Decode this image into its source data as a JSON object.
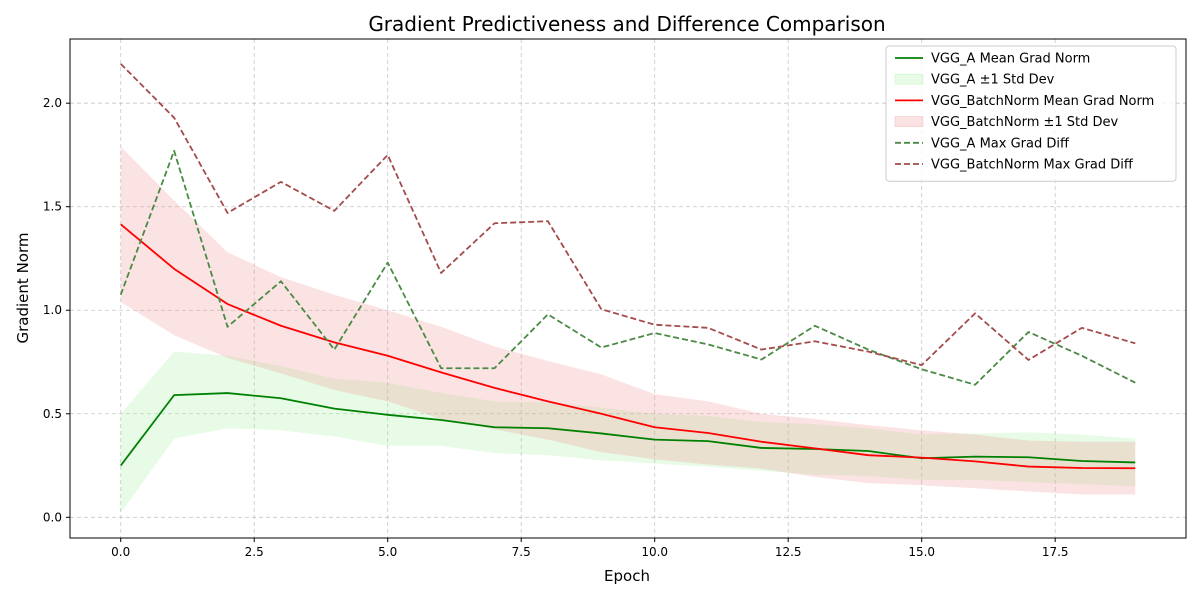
{
  "chart_data": {
    "type": "line",
    "title": "Gradient Predictiveness and Difference Comparison",
    "xlabel": "Epoch",
    "ylabel": "Gradient Norm",
    "xlim": [
      -0.95,
      19.95
    ],
    "ylim": [
      -0.1,
      2.31
    ],
    "xticks": [
      0.0,
      2.5,
      5.0,
      7.5,
      10.0,
      12.5,
      15.0,
      17.5
    ],
    "xtick_labels": [
      "0.0",
      "2.5",
      "5.0",
      "7.5",
      "10.0",
      "12.5",
      "15.0",
      "17.5"
    ],
    "yticks": [
      0.0,
      0.5,
      1.0,
      1.5,
      2.0
    ],
    "ytick_labels": [
      "0.0",
      "0.5",
      "1.0",
      "1.5",
      "2.0"
    ],
    "grid": true,
    "legend_position": "top-right",
    "x": [
      0,
      1,
      2,
      3,
      4,
      5,
      6,
      7,
      8,
      9,
      10,
      11,
      12,
      13,
      14,
      15,
      16,
      17,
      18,
      19
    ],
    "series": [
      {
        "name": "VGG_A Mean Grad Norm",
        "style": "solid",
        "color": "#008000",
        "values": [
          0.25,
          0.59,
          0.6,
          0.575,
          0.525,
          0.495,
          0.47,
          0.435,
          0.43,
          0.405,
          0.375,
          0.368,
          0.335,
          0.33,
          0.32,
          0.285,
          0.293,
          0.29,
          0.272,
          0.265
        ]
      },
      {
        "name": "VGG_A ±1 Std Dev",
        "style": "band",
        "color": "#90ee90",
        "upper": [
          0.5,
          0.8,
          0.78,
          0.73,
          0.67,
          0.65,
          0.6,
          0.56,
          0.555,
          0.53,
          0.5,
          0.49,
          0.46,
          0.45,
          0.43,
          0.4,
          0.405,
          0.41,
          0.4,
          0.38
        ],
        "lower": [
          0.02,
          0.38,
          0.43,
          0.42,
          0.39,
          0.345,
          0.345,
          0.31,
          0.3,
          0.275,
          0.26,
          0.245,
          0.225,
          0.205,
          0.2,
          0.18,
          0.18,
          0.17,
          0.16,
          0.15
        ]
      },
      {
        "name": "VGG_BatchNorm Mean Grad Norm",
        "style": "solid",
        "color": "#ff0000",
        "values": [
          1.415,
          1.2,
          1.03,
          0.925,
          0.845,
          0.78,
          0.7,
          0.625,
          0.56,
          0.5,
          0.435,
          0.407,
          0.365,
          0.333,
          0.3,
          0.288,
          0.27,
          0.245,
          0.238,
          0.237
        ]
      },
      {
        "name": "VGG_BatchNorm ±1 Std Dev",
        "style": "band",
        "color": "#f08080",
        "upper": [
          1.79,
          1.53,
          1.28,
          1.16,
          1.075,
          1.0,
          0.92,
          0.825,
          0.755,
          0.69,
          0.595,
          0.56,
          0.5,
          0.475,
          0.445,
          0.42,
          0.4,
          0.37,
          0.365,
          0.365
        ],
        "lower": [
          1.04,
          0.88,
          0.77,
          0.695,
          0.615,
          0.56,
          0.475,
          0.425,
          0.375,
          0.315,
          0.28,
          0.255,
          0.235,
          0.195,
          0.165,
          0.155,
          0.14,
          0.125,
          0.11,
          0.11
        ]
      },
      {
        "name": "VGG_A Max Grad Diff",
        "style": "dashed",
        "color": "#4a8a44",
        "values": [
          1.075,
          1.77,
          0.92,
          1.14,
          0.81,
          1.23,
          0.72,
          0.72,
          0.98,
          0.82,
          0.89,
          0.835,
          0.762,
          0.925,
          0.81,
          0.715,
          0.64,
          0.895,
          0.78,
          0.65
        ]
      },
      {
        "name": "VGG_BatchNorm Max Grad Diff",
        "style": "dashed",
        "color": "#a44b4b",
        "values": [
          2.19,
          1.93,
          1.47,
          1.62,
          1.48,
          1.75,
          1.18,
          1.42,
          1.43,
          1.005,
          0.93,
          0.915,
          0.81,
          0.85,
          0.8,
          0.735,
          0.985,
          0.76,
          0.915,
          0.84
        ]
      }
    ]
  }
}
